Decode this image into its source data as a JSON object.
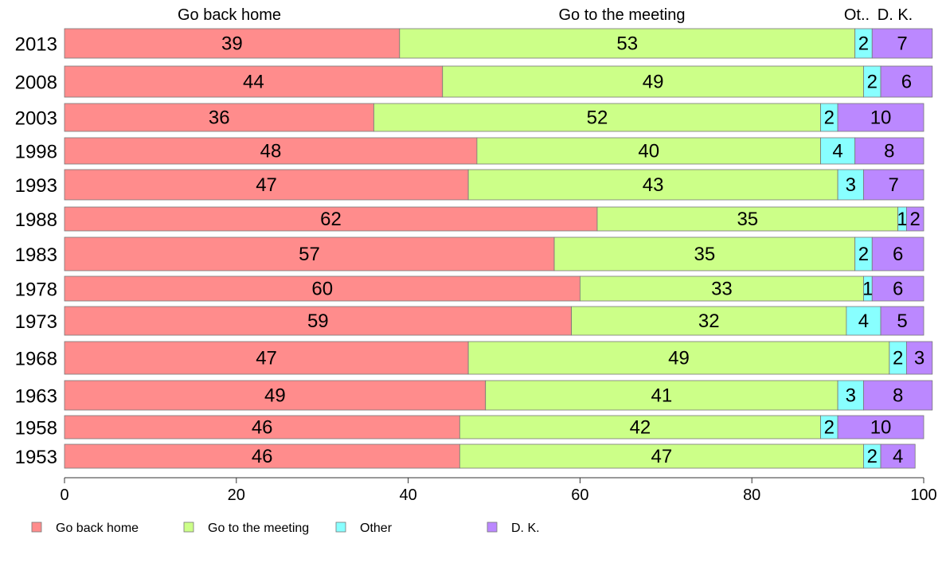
{
  "chart_data": {
    "type": "bar",
    "orientation": "horizontal",
    "stacked": true,
    "categories": [
      "2013",
      "2008",
      "2003",
      "1998",
      "1993",
      "1988",
      "1983",
      "1978",
      "1973",
      "1968",
      "1963",
      "1958",
      "1953"
    ],
    "series": [
      {
        "name": "Go back home",
        "color": "#ff8c8c",
        "values": [
          39,
          44,
          36,
          48,
          47,
          62,
          57,
          60,
          59,
          47,
          49,
          46,
          46
        ]
      },
      {
        "name": "Go to the meeting",
        "color": "#ccff88",
        "values": [
          53,
          49,
          52,
          40,
          43,
          35,
          35,
          33,
          32,
          49,
          41,
          42,
          47
        ]
      },
      {
        "name": "Other",
        "color": "#88ffff",
        "values": [
          2,
          2,
          2,
          4,
          3,
          1,
          2,
          1,
          4,
          2,
          3,
          2,
          2
        ]
      },
      {
        "name": "D. K.",
        "color": "#bb88ff",
        "values": [
          7,
          6,
          10,
          8,
          7,
          2,
          6,
          6,
          5,
          3,
          8,
          10,
          4
        ]
      }
    ],
    "column_headers": [
      "Go back home",
      "Go to the meeting",
      "Ot..",
      "D. K."
    ],
    "xlim": [
      0,
      100
    ],
    "xticks": [
      0,
      20,
      40,
      60,
      80,
      100
    ],
    "legend_position": "bottom",
    "grid": false
  }
}
